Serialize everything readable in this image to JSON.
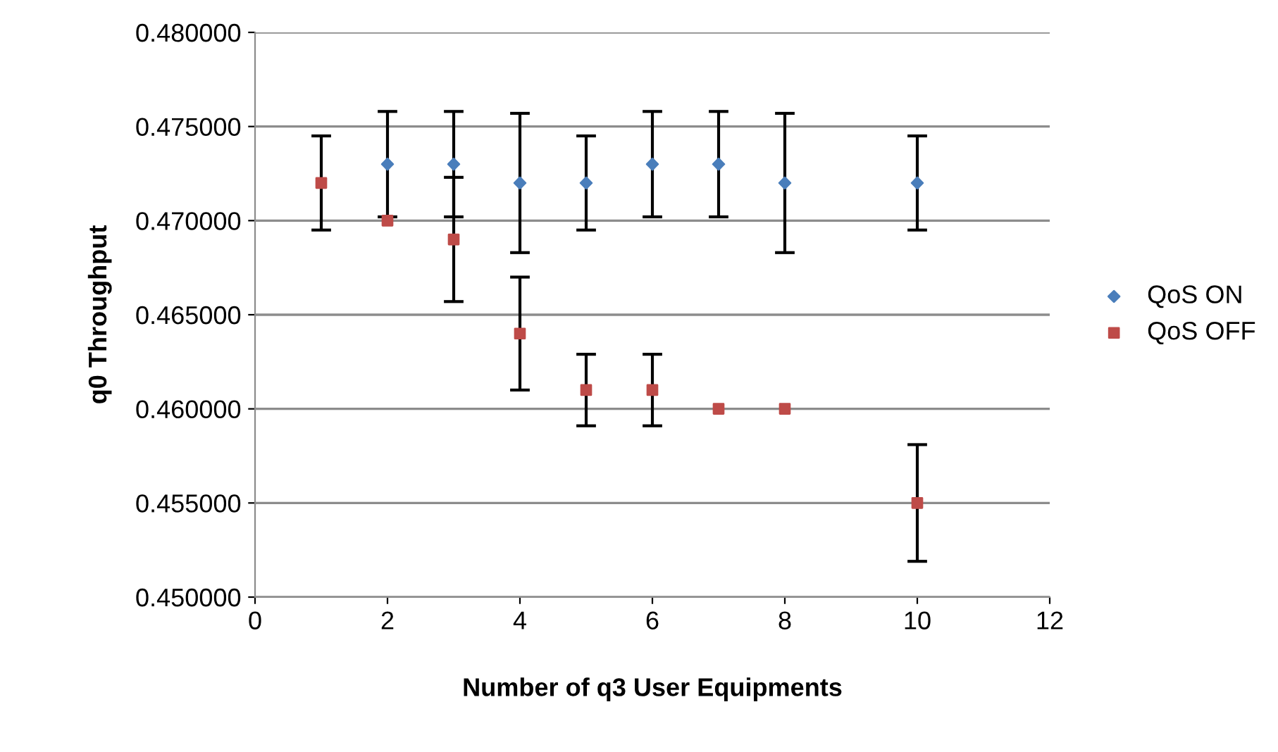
{
  "chart_data": {
    "type": "scatter",
    "xlabel": "Number of q3 User Equipments",
    "ylabel": "q0 Throughput",
    "x": [
      1,
      2,
      3,
      4,
      5,
      6,
      7,
      8,
      10
    ],
    "series": [
      {
        "name": "QoS ON",
        "color": "#4a7ebb",
        "marker": "diamond",
        "values": [
          null,
          0.473,
          0.473,
          0.472,
          0.472,
          0.473,
          0.473,
          0.472,
          0.472
        ],
        "errors": [
          null,
          0.0028,
          0.0028,
          0.0037,
          0.0025,
          0.0028,
          0.0028,
          0.0037,
          0.0025
        ]
      },
      {
        "name": "QoS OFF",
        "color": "#be4b48",
        "marker": "square",
        "values": [
          0.472,
          0.47,
          0.469,
          0.464,
          0.461,
          0.461,
          0.46,
          0.46,
          0.455
        ],
        "errors": [
          0.0025,
          null,
          0.0033,
          0.003,
          0.0019,
          0.0019,
          null,
          null,
          0.0031
        ]
      }
    ],
    "xlim": [
      0,
      12
    ],
    "xticks": [
      0,
      2,
      4,
      6,
      8,
      10,
      12
    ],
    "ylim": [
      0.45,
      0.48
    ],
    "yticks": [
      {
        "value": 0.45,
        "label": "0.450000"
      },
      {
        "value": 0.455,
        "label": "0.455000"
      },
      {
        "value": 0.46,
        "label": "0.460000"
      },
      {
        "value": 0.465,
        "label": "0.465000"
      },
      {
        "value": 0.47,
        "label": "0.470000"
      },
      {
        "value": 0.475,
        "label": "0.475000"
      },
      {
        "value": 0.48,
        "label": "0.480000"
      }
    ],
    "grid": "y",
    "legend": "right"
  }
}
